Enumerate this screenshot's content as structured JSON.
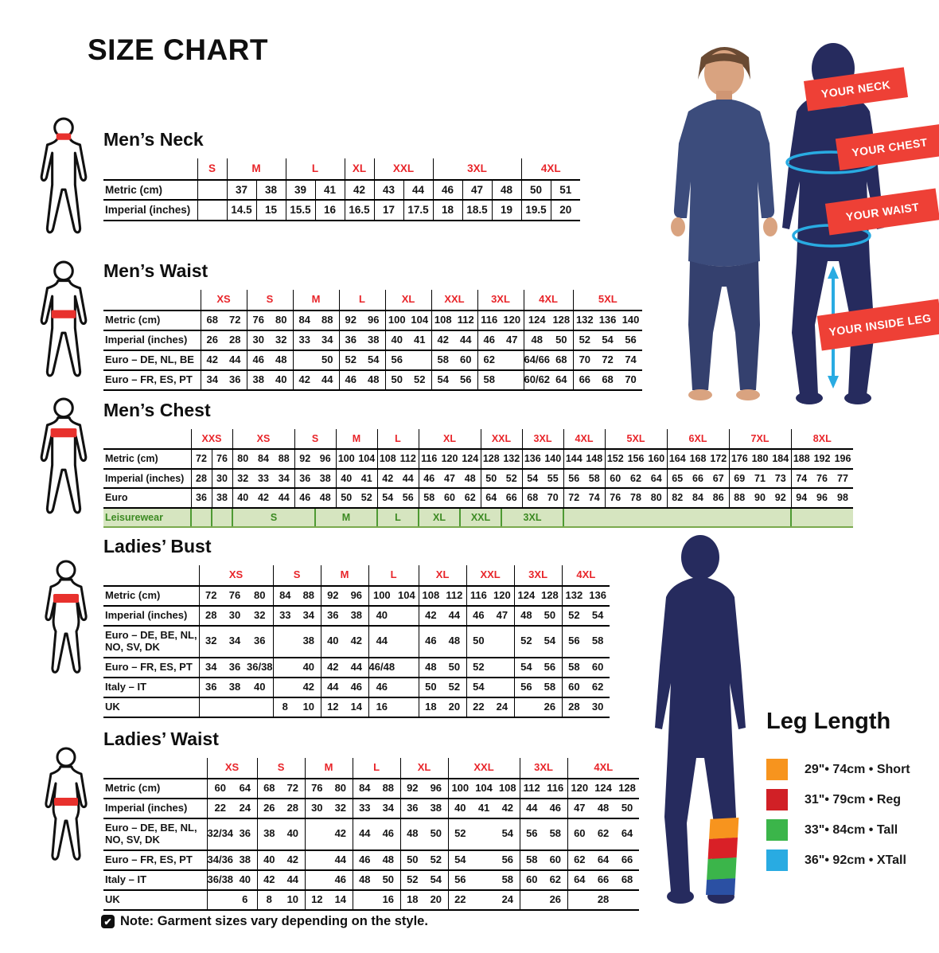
{
  "page": {
    "title": "SIZE CHART"
  },
  "colors": {
    "accent_red": "#E8252A",
    "banner_red": "#EE4036",
    "navy": "#262B5E",
    "cyan": "#29ABE2",
    "leisure_green_bg": "#D6E5C0",
    "leisure_green": "#3C8A22"
  },
  "banners": [
    "YOUR NECK",
    "YOUR CHEST",
    "YOUR WAIST",
    "YOUR INSIDE LEG"
  ],
  "leg_length": {
    "title": "Leg Length",
    "items": [
      {
        "color": "#F7941E",
        "label": "29\"• 74cm • Short"
      },
      {
        "color": "#D12026",
        "label": "31\"• 79cm • Reg"
      },
      {
        "color": "#3BB54A",
        "label": "33\"• 84cm • Tall"
      },
      {
        "color": "#29ABE2",
        "label": "36\"• 92cm • XTall"
      }
    ]
  },
  "note": {
    "icon_glyph": "✔",
    "text": "Note: Garment sizes vary depending on the style."
  },
  "tables": [
    {
      "id": "mens-neck",
      "title": "Men’s Neck",
      "sizes": [
        {
          "label": "S",
          "span": 1
        },
        {
          "label": "M",
          "span": 2
        },
        {
          "label": "L",
          "span": 2
        },
        {
          "label": "XL",
          "span": 1
        },
        {
          "label": "XXL",
          "span": 2
        },
        {
          "label": "3XL",
          "span": 3
        },
        {
          "label": "4XL",
          "span": 2
        }
      ],
      "rows": [
        {
          "label": "Metric (cm)",
          "cells": [
            "",
            "37",
            "38",
            "39",
            "41",
            "42",
            "43",
            "44",
            "46",
            "47",
            "48",
            "50",
            "51"
          ]
        },
        {
          "label": "Imperial (inches)",
          "cells": [
            "",
            "14.5",
            "15",
            "15.5",
            "16",
            "16.5",
            "17",
            "17.5",
            "18",
            "18.5",
            "19",
            "19.5",
            "20"
          ]
        }
      ]
    },
    {
      "id": "mens-waist",
      "title": "Men’s Waist",
      "sizes": [
        {
          "label": "XS",
          "span": 2
        },
        {
          "label": "S",
          "span": 2
        },
        {
          "label": "M",
          "span": 2
        },
        {
          "label": "L",
          "span": 2
        },
        {
          "label": "XL",
          "span": 2
        },
        {
          "label": "XXL",
          "span": 2
        },
        {
          "label": "3XL",
          "span": 2
        },
        {
          "label": "4XL",
          "span": 2
        },
        {
          "label": "5XL",
          "span": 3
        }
      ],
      "rows": [
        {
          "label": "Metric (cm)",
          "cells": [
            "68",
            "72",
            "76",
            "80",
            "84",
            "88",
            "92",
            "96",
            "100",
            "104",
            "108",
            "112",
            "116",
            "120",
            "124",
            "128",
            "132",
            "136",
            "140"
          ]
        },
        {
          "label": "Imperial (inches)",
          "cells": [
            "26",
            "28",
            "30",
            "32",
            "33",
            "34",
            "36",
            "38",
            "40",
            "41",
            "42",
            "44",
            "46",
            "47",
            "48",
            "50",
            "52",
            "54",
            "56"
          ]
        },
        {
          "label": "Euro – DE, NL, BE",
          "cells": [
            "42",
            "44",
            "46",
            "48",
            "",
            "50",
            "52",
            "54",
            "56",
            "",
            "58",
            "60",
            "62",
            "",
            "64/66",
            "68",
            "70",
            "72",
            "74"
          ]
        },
        {
          "label": "Euro – FR, ES, PT",
          "cells": [
            "34",
            "36",
            "38",
            "40",
            "42",
            "44",
            "46",
            "48",
            "50",
            "52",
            "54",
            "56",
            "58",
            "",
            "60/62",
            "64",
            "66",
            "68",
            "70"
          ]
        }
      ]
    },
    {
      "id": "mens-chest",
      "title": "Men’s Chest",
      "sizes": [
        {
          "label": "XXS",
          "span": 2
        },
        {
          "label": "XS",
          "span": 3
        },
        {
          "label": "S",
          "span": 2
        },
        {
          "label": "M",
          "span": 2
        },
        {
          "label": "L",
          "span": 2
        },
        {
          "label": "XL",
          "span": 3
        },
        {
          "label": "XXL",
          "span": 2
        },
        {
          "label": "3XL",
          "span": 2
        },
        {
          "label": "4XL",
          "span": 2
        },
        {
          "label": "5XL",
          "span": 3
        },
        {
          "label": "6XL",
          "span": 3
        },
        {
          "label": "7XL",
          "span": 3
        },
        {
          "label": "8XL",
          "span": 3
        }
      ],
      "rows": [
        {
          "label": "Metric (cm)",
          "cells": [
            "72",
            "76",
            "80",
            "84",
            "88",
            "92",
            "96",
            "100",
            "104",
            "108",
            "112",
            "116",
            "120",
            "124",
            "128",
            "132",
            "136",
            "140",
            "144",
            "148",
            "152",
            "156",
            "160",
            "164",
            "168",
            "172",
            "176",
            "180",
            "184",
            "188",
            "192",
            "196"
          ]
        },
        {
          "label": "Imperial (inches)",
          "cells": [
            "28",
            "30",
            "32",
            "33",
            "34",
            "36",
            "38",
            "40",
            "41",
            "42",
            "44",
            "46",
            "47",
            "48",
            "50",
            "52",
            "54",
            "55",
            "56",
            "58",
            "60",
            "62",
            "64",
            "65",
            "66",
            "67",
            "69",
            "71",
            "73",
            "74",
            "76",
            "77"
          ]
        },
        {
          "label": "Euro",
          "cells": [
            "36",
            "38",
            "40",
            "42",
            "44",
            "46",
            "48",
            "50",
            "52",
            "54",
            "56",
            "58",
            "60",
            "62",
            "64",
            "66",
            "68",
            "70",
            "72",
            "74",
            "76",
            "78",
            "80",
            "82",
            "84",
            "86",
            "88",
            "90",
            "92",
            "94",
            "96",
            "98"
          ]
        }
      ],
      "leisure": {
        "label": "Leisurewear",
        "spans": [
          {
            "label": "",
            "span": 1
          },
          {
            "label": "",
            "span": 1
          },
          {
            "label": "S",
            "span": 4
          },
          {
            "label": "M",
            "span": 3
          },
          {
            "label": "L",
            "span": 2
          },
          {
            "label": "XL",
            "span": 2
          },
          {
            "label": "XXL",
            "span": 2
          },
          {
            "label": "3XL",
            "span": 3
          },
          {
            "label": "",
            "span": 11
          },
          {
            "label": "",
            "span": 3
          }
        ]
      }
    },
    {
      "id": "ladies-bust",
      "title": "Ladies’ Bust",
      "sizes": [
        {
          "label": "XS",
          "span": 3
        },
        {
          "label": "S",
          "span": 2
        },
        {
          "label": "M",
          "span": 2
        },
        {
          "label": "L",
          "span": 2
        },
        {
          "label": "XL",
          "span": 2
        },
        {
          "label": "XXL",
          "span": 2
        },
        {
          "label": "3XL",
          "span": 2
        },
        {
          "label": "4XL",
          "span": 2
        }
      ],
      "rows": [
        {
          "label": "Metric (cm)",
          "cells": [
            "72",
            "76",
            "80",
            "84",
            "88",
            "92",
            "96",
            "100",
            "104",
            "108",
            "112",
            "116",
            "120",
            "124",
            "128",
            "132",
            "136"
          ]
        },
        {
          "label": "Imperial (inches)",
          "cells": [
            "28",
            "30",
            "32",
            "33",
            "34",
            "36",
            "38",
            "40",
            "",
            "42",
            "44",
            "46",
            "47",
            "48",
            "50",
            "52",
            "54"
          ]
        },
        {
          "label": "Euro –  DE, BE, NL, NO, SV, DK",
          "cells": [
            "32",
            "34",
            "36",
            "",
            "38",
            "40",
            "42",
            "44",
            "",
            "46",
            "48",
            "50",
            "",
            "52",
            "54",
            "56",
            "58"
          ]
        },
        {
          "label": "Euro – FR, ES, PT",
          "cells": [
            "34",
            "36",
            "36/38",
            "",
            "40",
            "42",
            "44",
            "46/48",
            "",
            "48",
            "50",
            "52",
            "",
            "54",
            "56",
            "58",
            "60"
          ]
        },
        {
          "label": "Italy – IT",
          "cells": [
            "36",
            "38",
            "40",
            "",
            "42",
            "44",
            "46",
            "46",
            "",
            "50",
            "52",
            "54",
            "",
            "56",
            "58",
            "60",
            "62"
          ]
        },
        {
          "label": "UK",
          "cells": [
            "",
            "",
            "",
            "8",
            "10",
            "12",
            "14",
            "16",
            "",
            "18",
            "20",
            "22",
            "24",
            "",
            "26",
            "28",
            "30"
          ]
        }
      ]
    },
    {
      "id": "ladies-waist",
      "title": "Ladies’ Waist",
      "sizes": [
        {
          "label": "XS",
          "span": 2
        },
        {
          "label": "S",
          "span": 2
        },
        {
          "label": "M",
          "span": 2
        },
        {
          "label": "L",
          "span": 2
        },
        {
          "label": "XL",
          "span": 2
        },
        {
          "label": "XXL",
          "span": 3
        },
        {
          "label": "3XL",
          "span": 2
        },
        {
          "label": "4XL",
          "span": 3
        }
      ],
      "rows": [
        {
          "label": "Metric (cm)",
          "cells": [
            "60",
            "64",
            "68",
            "72",
            "76",
            "80",
            "84",
            "88",
            "92",
            "96",
            "100",
            "104",
            "108",
            "112",
            "116",
            "120",
            "124",
            "128"
          ]
        },
        {
          "label": "Imperial (inches)",
          "cells": [
            "22",
            "24",
            "26",
            "28",
            "30",
            "32",
            "33",
            "34",
            "36",
            "38",
            "40",
            "41",
            "42",
            "44",
            "46",
            "47",
            "48",
            "50"
          ]
        },
        {
          "label": "Euro – DE, BE, NL, NO, SV, DK",
          "cells": [
            "32/34",
            "36",
            "38",
            "40",
            "",
            "42",
            "44",
            "46",
            "48",
            "50",
            "52",
            "",
            "54",
            "56",
            "58",
            "60",
            "62",
            "64"
          ]
        },
        {
          "label": "Euro – FR, ES, PT",
          "cells": [
            "34/36",
            "38",
            "40",
            "42",
            "",
            "44",
            "46",
            "48",
            "50",
            "52",
            "54",
            "",
            "56",
            "58",
            "60",
            "62",
            "64",
            "66"
          ]
        },
        {
          "label": "Italy – IT",
          "cells": [
            "36/38",
            "40",
            "42",
            "44",
            "",
            "46",
            "48",
            "50",
            "52",
            "54",
            "56",
            "",
            "58",
            "60",
            "62",
            "64",
            "66",
            "68"
          ]
        },
        {
          "label": "UK",
          "cells": [
            "",
            "6",
            "8",
            "10",
            "12",
            "14",
            "",
            "16",
            "18",
            "20",
            "22",
            "",
            "24",
            "",
            "26",
            "",
            "28",
            ""
          ]
        }
      ]
    }
  ]
}
